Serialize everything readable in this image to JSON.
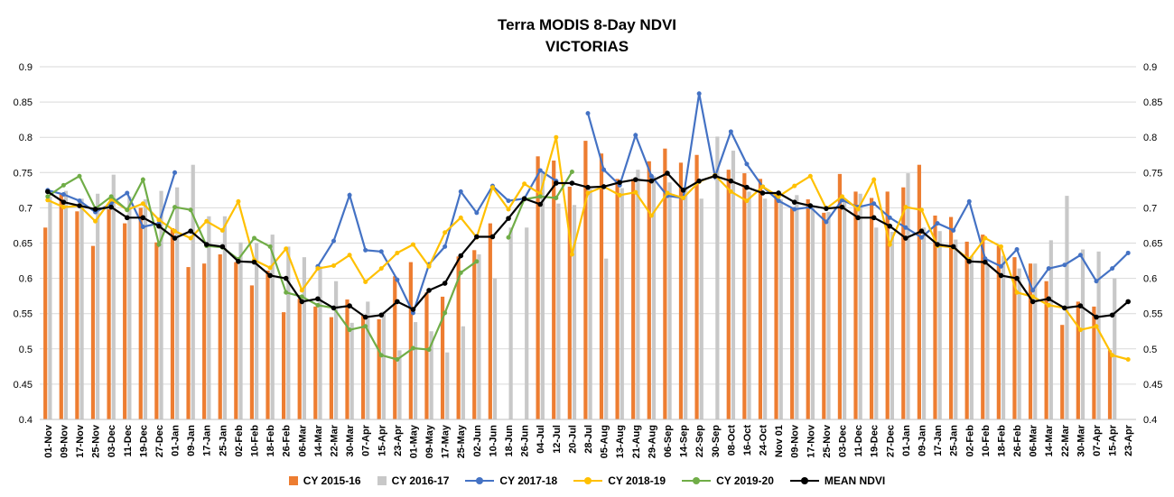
{
  "chart_data": {
    "type": "bar",
    "title": "Terra MODIS 8-Day  NDVI",
    "subtitle": "VICTORIAS",
    "ylim": [
      0.4,
      0.9
    ],
    "yticks": [
      "0.4",
      "0.45",
      "0.5",
      "0.55",
      "0.6",
      "0.65",
      "0.7",
      "0.75",
      "0.8",
      "0.85",
      "0.9"
    ],
    "grid": true,
    "legend_position": "bottom",
    "categories": [
      "01-Nov",
      "09-Nov",
      "17-Nov",
      "25-Nov",
      "03-Dec",
      "11-Dec",
      "19-Dec",
      "27-Dec",
      "01-Jan",
      "09-Jan",
      "17-Jan",
      "25-Jan",
      "02-Feb",
      "10-Feb",
      "18-Feb",
      "26-Feb",
      "06-Mar",
      "14-Mar",
      "22-Mar",
      "30-Mar",
      "07-Apr",
      "15-Apr",
      "23-Apr",
      "01-May",
      "09-May",
      "17-May",
      "25-May",
      "02-Jun",
      "10-Jun",
      "18-Jun",
      "26-Jun",
      "04-Jul",
      "12-Jul",
      "20-Jul",
      "28-Jul",
      "05-Aug",
      "13-Aug",
      "21-Aug",
      "29-Aug",
      "06-Sep",
      "14-Sep",
      "22-Sep",
      "30-Sep",
      "08-Oct",
      "16-Oct",
      "24-Oct",
      "Nov 01",
      "09-Nov",
      "17-Nov",
      "25-Nov",
      "03-Dec",
      "11-Dec",
      "19-Dec",
      "27-Dec",
      "01-Jan",
      "09-Jan",
      "17-Jan",
      "25-Jan",
      "02-Feb",
      "10-Feb",
      "18-Feb",
      "26-Feb",
      "06-Mar",
      "14-Mar",
      "22-Mar",
      "30-Mar",
      "07-Apr",
      "15-Apr",
      "23-Apr"
    ],
    "x_labels": [
      "01-Nov",
      "09-Nov",
      "17-Nov",
      "25-Nov",
      "03-Dec",
      "11-Dec",
      "19-Dec",
      "27-Dec",
      "01-Jan",
      "09-Jan",
      "17-Jan",
      "25-Jan",
      "02-Feb",
      "10-Feb",
      "18-Feb",
      "26-Feb",
      "06-Mar",
      "14-Mar",
      "22-Mar",
      "30-Mar",
      "07-Apr",
      "15-Apr",
      "23-Apr",
      "01-May",
      "09-May",
      "17-May",
      "25-May",
      "02-Jun",
      "10-Jun",
      "18-Jun",
      "26-Jun",
      "04-Jul",
      "12-Jul",
      "20-Jul",
      "28-Jul",
      "05-Aug",
      "13-Aug",
      "21-Aug",
      "29-Aug",
      "06-Sep",
      "14-Sep",
      "22-Sep",
      "30-Sep",
      "08-Oct",
      "16-Oct",
      "24-Oct",
      "Nov 01",
      "09-Nov",
      "17-Nov",
      "25-Nov",
      "03-Dec",
      "11-Dec",
      "19-Dec",
      "27-Dec",
      "01-Jan",
      "09-Jan",
      "17-Jan",
      "25-Jan",
      "02-Feb",
      "10-Feb",
      "18-Feb",
      "26-Feb",
      "06-Mar",
      "14-Mar",
      "22-Mar",
      "30-Mar",
      "07-Apr",
      "15-Apr",
      "23-Apr"
    ],
    "series": [
      {
        "name": "CY 2015-16",
        "kind": "bar",
        "color": "#ED7D31",
        "values": [
          0.672,
          0.721,
          0.695,
          0.646,
          0.698,
          0.678,
          0.7,
          0.651,
          0.671,
          0.616,
          0.621,
          0.634,
          0.623,
          0.59,
          0.611,
          0.552,
          0.571,
          0.56,
          0.545,
          0.57,
          0.547,
          0.542,
          0.603,
          0.623,
          0.58,
          0.574,
          0.631,
          0.64,
          0.678,
          null,
          null,
          0.773,
          0.767,
          0.73,
          0.795,
          0.777,
          0.741,
          0.741,
          0.766,
          0.784,
          0.764,
          0.775,
          null,
          0.754,
          0.749,
          0.741,
          0.721,
          0.701,
          0.712,
          0.693,
          0.748,
          0.723,
          0.714,
          0.723,
          0.729,
          0.761,
          0.689,
          0.687,
          0.652,
          0.662,
          0.646,
          0.63,
          0.621,
          0.596,
          0.534,
          0.567,
          0.56,
          0.498,
          null
        ]
      },
      {
        "name": "CY 2016-17",
        "kind": "bar",
        "color": "#C8C8C8",
        "values": [
          0.716,
          0.724,
          0.713,
          0.72,
          0.747,
          0.716,
          0.712,
          0.724,
          0.729,
          0.761,
          0.688,
          0.688,
          0.651,
          0.65,
          0.662,
          0.645,
          0.63,
          0.617,
          0.596,
          0.537,
          0.567,
          0.553,
          0.498,
          0.538,
          0.525,
          0.495,
          0.532,
          0.634,
          0.6,
          0.672,
          0.672,
          0.752,
          0.706,
          0.704,
          0.727,
          0.628,
          0.728,
          0.754,
          0.745,
          0.736,
          0.73,
          0.713,
          0.801,
          0.781,
          0.723,
          0.713,
          0.712,
          0.718,
          0.701,
          0.694,
          0.712,
          0.72,
          0.672,
          0.666,
          0.749,
          0.672,
          0.667,
          0.655,
          0.632,
          0.621,
          0.632,
          0.614,
          0.621,
          0.654,
          0.717,
          0.641,
          0.638,
          0.6,
          null
        ]
      },
      {
        "name": "CY 2017-18",
        "kind": "line",
        "color": "#4472C4",
        "values": [
          0.725,
          0.719,
          0.71,
          0.694,
          0.706,
          0.721,
          0.673,
          0.678,
          0.75,
          null,
          null,
          null,
          null,
          null,
          null,
          null,
          null,
          0.617,
          0.653,
          0.718,
          0.64,
          0.638,
          0.598,
          0.551,
          0.62,
          0.645,
          0.723,
          0.693,
          0.731,
          0.71,
          0.713,
          0.753,
          0.738,
          null,
          0.834,
          0.754,
          0.732,
          0.803,
          0.745,
          0.717,
          0.714,
          0.862,
          0.744,
          0.808,
          0.762,
          0.73,
          0.71,
          0.698,
          0.701,
          0.68,
          0.711,
          0.701,
          0.706,
          0.686,
          0.672,
          0.658,
          0.678,
          0.668,
          0.709,
          0.628,
          0.617,
          0.641,
          0.583,
          0.614,
          0.619,
          0.633,
          0.596,
          0.614,
          0.636
        ]
      },
      {
        "name": "CY 2018-19",
        "kind": "line",
        "color": "#FFC000",
        "values": [
          0.711,
          0.701,
          0.703,
          0.681,
          0.712,
          0.697,
          0.706,
          0.683,
          0.667,
          0.657,
          0.681,
          0.668,
          0.709,
          0.626,
          0.615,
          0.642,
          0.583,
          0.614,
          0.618,
          0.633,
          0.595,
          0.614,
          0.636,
          0.648,
          0.617,
          0.665,
          0.686,
          0.658,
          0.729,
          0.698,
          0.734,
          0.72,
          0.8,
          0.634,
          0.721,
          0.73,
          0.718,
          0.722,
          0.689,
          0.721,
          0.714,
          0.737,
          0.746,
          0.723,
          0.71,
          0.73,
          0.716,
          0.731,
          0.745,
          0.699,
          0.716,
          0.698,
          0.74,
          0.648,
          0.701,
          0.697,
          0.646,
          0.644,
          0.627,
          0.657,
          0.645,
          0.58,
          0.574,
          0.562,
          0.558,
          0.527,
          0.532,
          0.491,
          0.485
        ]
      },
      {
        "name": "CY 2019-20",
        "kind": "line",
        "color": "#70AD47",
        "values": [
          0.716,
          0.732,
          0.745,
          0.699,
          0.716,
          0.697,
          0.74,
          0.648,
          0.701,
          0.697,
          0.646,
          0.644,
          0.627,
          0.657,
          0.645,
          0.58,
          0.574,
          0.562,
          0.558,
          0.527,
          0.532,
          0.491,
          0.485,
          0.501,
          0.499,
          0.551,
          0.608,
          0.624,
          null,
          0.658,
          0.712,
          0.716,
          0.714,
          0.751,
          null,
          null,
          null,
          null,
          null,
          null,
          null,
          null,
          null,
          null,
          null,
          null,
          null,
          null,
          null,
          null,
          null,
          null,
          null,
          null,
          null,
          null,
          null,
          null,
          null,
          null,
          null,
          null,
          null,
          null,
          null,
          null,
          null,
          null,
          null
        ]
      },
      {
        "name": "MEAN NDVI",
        "kind": "line",
        "color": "#000000",
        "values": [
          0.723,
          0.708,
          0.703,
          0.698,
          0.701,
          0.686,
          0.686,
          0.674,
          0.657,
          0.667,
          0.648,
          0.645,
          0.624,
          0.623,
          0.604,
          0.6,
          0.567,
          0.571,
          0.558,
          0.561,
          0.545,
          0.548,
          0.567,
          0.556,
          0.583,
          0.593,
          0.632,
          0.659,
          0.659,
          0.685,
          0.713,
          0.705,
          0.735,
          0.735,
          0.729,
          0.73,
          0.736,
          0.74,
          0.738,
          0.749,
          0.725,
          0.738,
          0.745,
          0.738,
          0.729,
          0.721,
          0.721,
          0.708,
          0.703,
          0.699,
          0.701,
          0.686,
          0.686,
          0.674,
          0.657,
          0.667,
          0.648,
          0.645,
          0.624,
          0.623,
          0.604,
          0.6,
          0.567,
          0.571,
          0.558,
          0.561,
          0.545,
          0.548,
          0.567
        ]
      }
    ]
  }
}
